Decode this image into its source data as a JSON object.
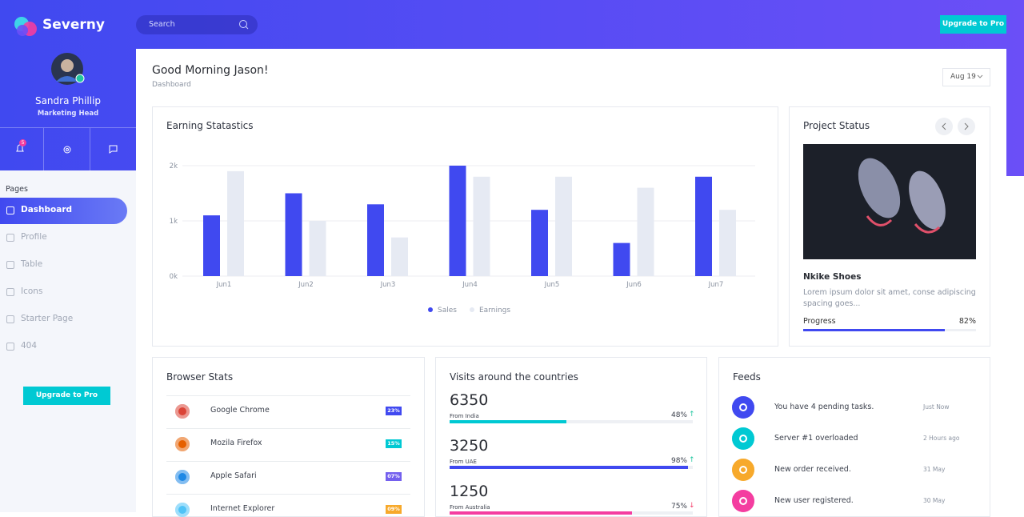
{
  "brand": "Severny",
  "search_placeholder": "Search",
  "upgrade_top": "Upgrade to Pro",
  "profile": {
    "name": "Sandra Phillip",
    "role": "Marketing Head",
    "notifications": "5"
  },
  "sidebar": {
    "section": "Pages",
    "items": [
      "Dashboard",
      "Profile",
      "Table",
      "Icons",
      "Starter Page",
      "404"
    ],
    "upgrade": "Upgrade to Pro"
  },
  "header": {
    "greeting": "Good Morning Jason!",
    "breadcrumb": "Dashboard",
    "date": "Aug 19"
  },
  "chart_data": {
    "type": "bar",
    "title": "Earning Statastics",
    "categories": [
      "Jun1",
      "Jun2",
      "Jun3",
      "Jun4",
      "Jun5",
      "Jun6",
      "Jun7"
    ],
    "series": [
      {
        "name": "Sales",
        "color": "#4049f0",
        "values": [
          1100,
          1500,
          1300,
          2000,
          1200,
          600,
          1800
        ]
      },
      {
        "name": "Earnings",
        "color": "#e6eaf3",
        "values": [
          1900,
          1000,
          700,
          1800,
          1800,
          1600,
          1200
        ]
      }
    ],
    "ylim": [
      0,
      2000
    ],
    "yticks": [
      {
        "value": 0,
        "label": "0k"
      },
      {
        "value": 1000,
        "label": "1k"
      },
      {
        "value": 2000,
        "label": "2k"
      }
    ],
    "grid": true
  },
  "project": {
    "title": "Project Status",
    "product": "Nkike Shoes",
    "description": "Lorem ipsum dolor sit amet, conse adipiscing spacing goes...",
    "progress_label": "Progress",
    "progress": 82,
    "progress_value_label": "82%"
  },
  "browser_stats": {
    "title": "Browser Stats",
    "rows": [
      {
        "name": "Google Chrome",
        "badge": "23%"
      },
      {
        "name": "Mozila Firefox",
        "badge": "15%"
      },
      {
        "name": "Apple Safari",
        "badge": "07%"
      },
      {
        "name": "Internet Explorer",
        "badge": "09%"
      }
    ]
  },
  "visits": {
    "title": "Visits around the countries",
    "rows": [
      {
        "count": 6350,
        "from": "From India",
        "percent": 48,
        "percent_label": "48%"
      },
      {
        "count": 3250,
        "from": "From UAE",
        "percent": 98,
        "percent_label": "98%"
      },
      {
        "count": 1250,
        "from": "From Australia",
        "percent": 75,
        "percent_label": "75%"
      }
    ]
  },
  "feeds": {
    "title": "Feeds",
    "items": [
      {
        "text": "You have 4 pending tasks.",
        "time": "Just Now"
      },
      {
        "text": "Server #1 overloaded",
        "time": "2 Hours ago"
      },
      {
        "text": "New order received.",
        "time": "31 May"
      },
      {
        "text": "New user registered.",
        "time": "30 May"
      }
    ]
  }
}
